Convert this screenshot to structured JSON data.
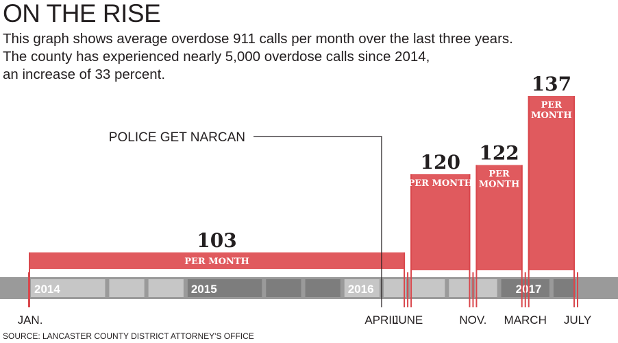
{
  "header": {
    "title": "ON THE RISE",
    "description": [
      "This graph shows average overdose 911 calls per month over the last three years.",
      "The county has experienced nearly 5,000 overdose calls since 2014,",
      "an increase of 33 percent."
    ]
  },
  "source": "SOURCE: LANCASTER COUNTY DISTRICT ATTORNEY'S OFFICE",
  "colors": {
    "bar": "#e05a5e",
    "bar_edge": "#d9474c",
    "band_light": "#c6c6c6",
    "band_dark": "#7d7d7d",
    "band_edge": "#9a9a9a",
    "text": "#231f20"
  },
  "chart_data": {
    "type": "bar",
    "title": "ON THE RISE",
    "x_start": "2014-01",
    "x_end": "2017-08",
    "x_ticks": [
      {
        "date": "2014-01",
        "label": "JAN."
      },
      {
        "date": "2016-04",
        "label": "APRIL"
      },
      {
        "date": "2016-06",
        "label": "JUNE"
      },
      {
        "date": "2016-11",
        "label": "NOV."
      },
      {
        "date": "2017-03",
        "label": "MARCH"
      },
      {
        "date": "2017-07",
        "label": "JULY"
      }
    ],
    "years": [
      {
        "label": "2014",
        "start": "2014-01",
        "end": "2015-01"
      },
      {
        "label": "2015",
        "start": "2015-01",
        "end": "2016-01"
      },
      {
        "label": "2016",
        "start": "2016-01",
        "end": "2017-01"
      },
      {
        "label": "2017",
        "start": "2017-01",
        "end": "2017-08"
      }
    ],
    "ylim": [
      0,
      150
    ],
    "bars": [
      {
        "start": "2014-01",
        "end": "2016-06",
        "value": 103,
        "label_lines": [
          "PER MONTH"
        ]
      },
      {
        "start": "2016-06",
        "end": "2016-11",
        "value": 120,
        "label_lines": [
          "PER MONTH"
        ]
      },
      {
        "start": "2016-11",
        "end": "2017-03",
        "value": 122,
        "label_lines": [
          "PER",
          "MONTH"
        ]
      },
      {
        "start": "2017-03",
        "end": "2017-07",
        "value": 137,
        "label_lines": [
          "PER",
          "MONTH"
        ]
      }
    ],
    "annotations": [
      {
        "date": "2016-04",
        "text": "POLICE GET NARCAN"
      }
    ]
  }
}
